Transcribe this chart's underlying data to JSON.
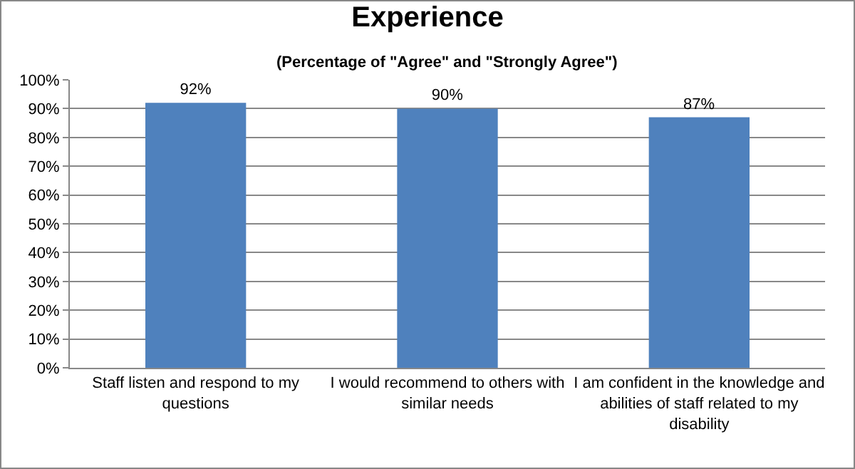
{
  "chart_data": {
    "type": "bar",
    "title": "Experience",
    "subtitle": "(Percentage of \"Agree\" and \"Strongly Agree\")",
    "categories": [
      "Staff listen and respond to my questions",
      "I would recommend to others with similar needs",
      "I am confident in the knowledge and abilities of staff related to my disability"
    ],
    "values": [
      92,
      90,
      87
    ],
    "color": "#4f81bd",
    "value_labels": [
      "92%",
      "90%",
      "87%"
    ],
    "ylim": [
      0,
      100
    ],
    "yticks": [
      {
        "value": 0,
        "label": "0%"
      },
      {
        "value": 10,
        "label": "10%"
      },
      {
        "value": 20,
        "label": "20%"
      },
      {
        "value": 30,
        "label": "30%"
      },
      {
        "value": 40,
        "label": "40%"
      },
      {
        "value": 50,
        "label": "50%"
      },
      {
        "value": 60,
        "label": "60%"
      },
      {
        "value": 70,
        "label": "70%"
      },
      {
        "value": 80,
        "label": "80%"
      },
      {
        "value": 90,
        "label": "90%"
      },
      {
        "value": 100,
        "label": "100%"
      }
    ],
    "grid": "y"
  }
}
